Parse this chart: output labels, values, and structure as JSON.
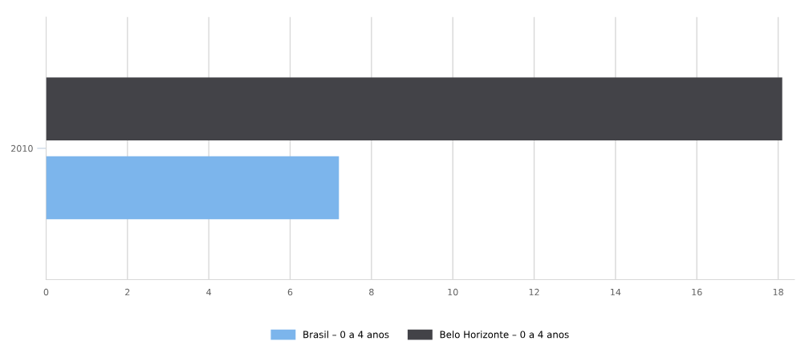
{
  "chart_data": {
    "type": "bar",
    "orientation": "horizontal",
    "categories": [
      "2010"
    ],
    "series": [
      {
        "name": "Brasil – 0 a 4 anos",
        "color": "#7cb5ec",
        "values": [
          7.2
        ]
      },
      {
        "name": "Belo Horizonte – 0 a 4 anos",
        "color": "#434348",
        "values": [
          18.1
        ]
      }
    ],
    "xlim": [
      0,
      18.4
    ],
    "xticks": [
      0,
      2,
      4,
      6,
      8,
      10,
      12,
      14,
      16,
      18
    ],
    "grid": "x",
    "legend": "bottom"
  }
}
